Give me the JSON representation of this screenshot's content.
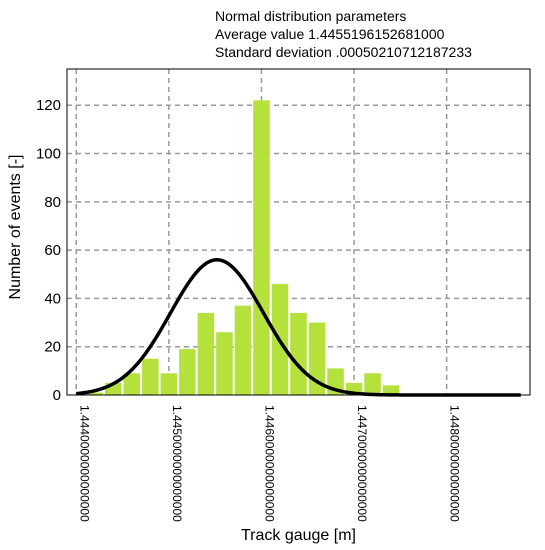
{
  "chart_data": {
    "type": "bar",
    "annotations": [
      "Normal distribution parameters",
      "Average value 1.4455196152681000",
      "Standard deviation .00050210712187233"
    ],
    "xlabel": "Track gauge [m]",
    "ylabel": "Number of events [-]",
    "xlim": [
      1.4439,
      1.4489
    ],
    "ylim": [
      0,
      135
    ],
    "x_ticks": [
      {
        "value": 1.444,
        "label": "1.4440000000000000"
      },
      {
        "value": 1.445,
        "label": "1.4450000000000000"
      },
      {
        "value": 1.446,
        "label": "1.4460000000000000"
      },
      {
        "value": 1.447,
        "label": "1.4470000000000000"
      },
      {
        "value": 1.448,
        "label": "1.4480000000000000"
      }
    ],
    "y_ticks": [
      0,
      20,
      40,
      60,
      80,
      100,
      120
    ],
    "grid": true,
    "bin_width": 0.0002,
    "bar_color": "#b5e13c",
    "curve_color": "#000000",
    "bins": [
      {
        "x0": 1.4441,
        "value": 1
      },
      {
        "x0": 1.4443,
        "value": 5
      },
      {
        "x0": 1.4445,
        "value": 9
      },
      {
        "x0": 1.4447,
        "value": 15
      },
      {
        "x0": 1.4449,
        "value": 9
      },
      {
        "x0": 1.4451,
        "value": 19
      },
      {
        "x0": 1.4453,
        "value": 34
      },
      {
        "x0": 1.4455,
        "value": 26
      },
      {
        "x0": 1.4457,
        "value": 37
      },
      {
        "x0": 1.4459,
        "value": 122
      },
      {
        "x0": 1.4461,
        "value": 46
      },
      {
        "x0": 1.4463,
        "value": 34
      },
      {
        "x0": 1.4465,
        "value": 30
      },
      {
        "x0": 1.4467,
        "value": 11
      },
      {
        "x0": 1.4469,
        "value": 5
      },
      {
        "x0": 1.4471,
        "value": 9
      },
      {
        "x0": 1.4473,
        "value": 4
      }
    ],
    "normal_curve": {
      "mean": 1.4455196152681,
      "std": 0.00050210712187233,
      "peak": 56
    }
  }
}
